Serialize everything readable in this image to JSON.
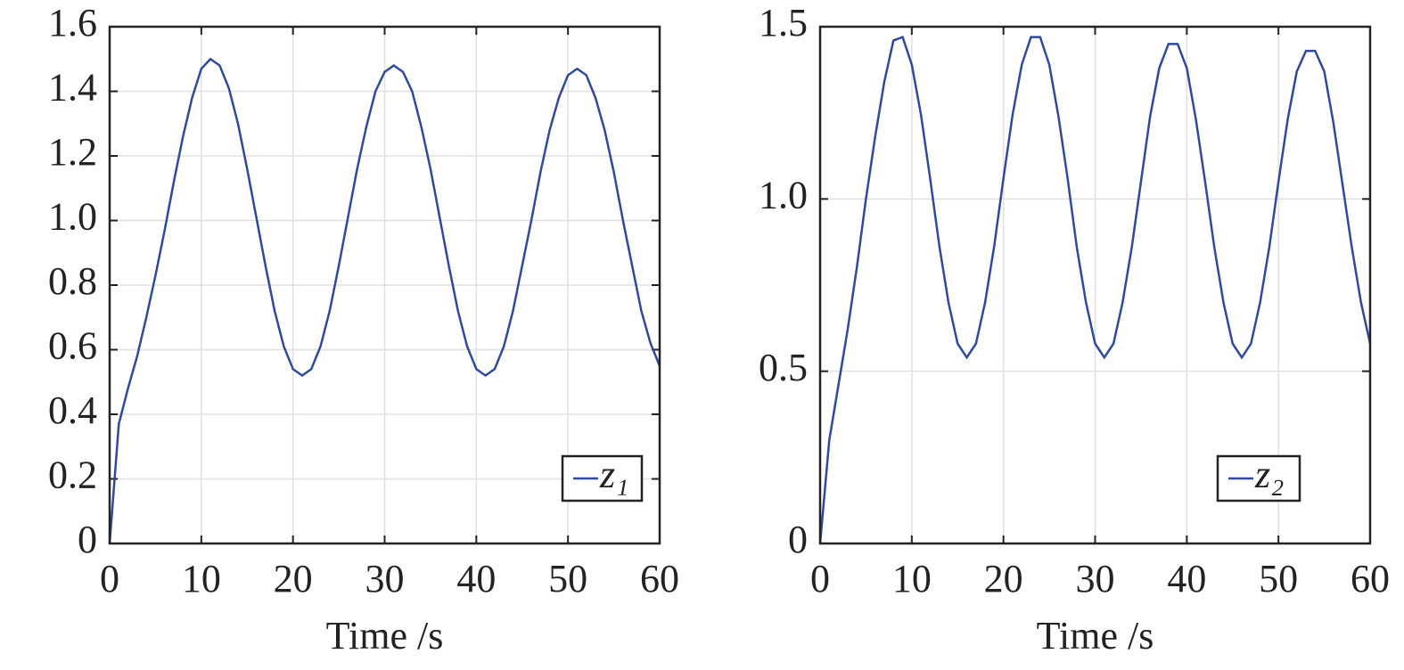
{
  "chart_data": [
    {
      "type": "line",
      "xlabel": "Time /s",
      "x": [
        0,
        1,
        2,
        3,
        4,
        5,
        6,
        7,
        8,
        9,
        10,
        11,
        12,
        13,
        14,
        15,
        16,
        17,
        18,
        19,
        20,
        21,
        22,
        23,
        24,
        25,
        26,
        27,
        28,
        29,
        30,
        31,
        32,
        33,
        34,
        35,
        36,
        37,
        38,
        39,
        40,
        41,
        42,
        43,
        44,
        45,
        46,
        47,
        48,
        49,
        50,
        51,
        52,
        53,
        54,
        55,
        56,
        57,
        58,
        59,
        60
      ],
      "series": [
        {
          "name": "z₁",
          "color": "#2f4a9c",
          "values": [
            0,
            0.37,
            0.48,
            0.58,
            0.7,
            0.83,
            0.97,
            1.12,
            1.26,
            1.38,
            1.47,
            1.5,
            1.48,
            1.41,
            1.3,
            1.16,
            1.01,
            0.86,
            0.72,
            0.61,
            0.54,
            0.52,
            0.54,
            0.61,
            0.72,
            0.86,
            1.01,
            1.16,
            1.29,
            1.4,
            1.46,
            1.48,
            1.46,
            1.4,
            1.29,
            1.16,
            1.01,
            0.86,
            0.72,
            0.61,
            0.54,
            0.52,
            0.54,
            0.61,
            0.72,
            0.86,
            1.0,
            1.15,
            1.28,
            1.38,
            1.45,
            1.47,
            1.45,
            1.38,
            1.28,
            1.15,
            1.0,
            0.86,
            0.72,
            0.62,
            0.55
          ]
        }
      ],
      "xlim": [
        0,
        60
      ],
      "xticks": [
        0,
        10,
        20,
        30,
        40,
        50,
        60
      ],
      "ylim": [
        0,
        1.6
      ],
      "yticks": [
        0,
        {
          "value": 0.2,
          "label": "0.2"
        },
        {
          "value": 0.4,
          "label": "0.4"
        },
        {
          "value": 0.6,
          "label": "0.6"
        },
        {
          "value": 0.8,
          "label": "0.8"
        },
        {
          "value": 1,
          "label": "1.0"
        },
        {
          "value": 1.2,
          "label": "1.2"
        },
        {
          "value": 1.4,
          "label": "1.4"
        },
        {
          "value": 1.6,
          "label": "1.6"
        }
      ],
      "grid": true,
      "legend": "lower right"
    },
    {
      "type": "line",
      "xlabel": "Time /s",
      "x": [
        0,
        1,
        2,
        3,
        4,
        5,
        6,
        7,
        8,
        9,
        10,
        11,
        12,
        13,
        14,
        15,
        16,
        17,
        18,
        19,
        20,
        21,
        22,
        23,
        24,
        25,
        26,
        27,
        28,
        29,
        30,
        31,
        32,
        33,
        34,
        35,
        36,
        37,
        38,
        39,
        40,
        41,
        42,
        43,
        44,
        45,
        46,
        47,
        48,
        49,
        50,
        51,
        52,
        53,
        54,
        55,
        56,
        57,
        58,
        59,
        60
      ],
      "series": [
        {
          "name": "z₂",
          "color": "#2f4a9c",
          "values": [
            0,
            0.3,
            0.46,
            0.62,
            0.8,
            1.0,
            1.18,
            1.34,
            1.46,
            1.47,
            1.39,
            1.245,
            1.06,
            0.865,
            0.7,
            0.58,
            0.54,
            0.58,
            0.7,
            0.865,
            1.06,
            1.245,
            1.39,
            1.47,
            1.47,
            1.39,
            1.24,
            1.06,
            0.86,
            0.7,
            0.58,
            0.54,
            0.58,
            0.7,
            0.86,
            1.05,
            1.24,
            1.38,
            1.45,
            1.45,
            1.38,
            1.23,
            1.05,
            0.86,
            0.7,
            0.58,
            0.54,
            0.58,
            0.7,
            0.86,
            1.05,
            1.23,
            1.37,
            1.43,
            1.43,
            1.37,
            1.22,
            1.04,
            0.86,
            0.7,
            0.58
          ]
        }
      ],
      "xlim": [
        0,
        60
      ],
      "xticks": [
        0,
        10,
        20,
        30,
        40,
        50,
        60
      ],
      "ylim": [
        0,
        1.5
      ],
      "yticks": [
        0,
        {
          "value": 0.5,
          "label": "0.5"
        },
        {
          "value": 1,
          "label": "1.0"
        },
        {
          "value": 1.5,
          "label": "1.5"
        }
      ],
      "grid": true,
      "legend": "lower right"
    }
  ]
}
